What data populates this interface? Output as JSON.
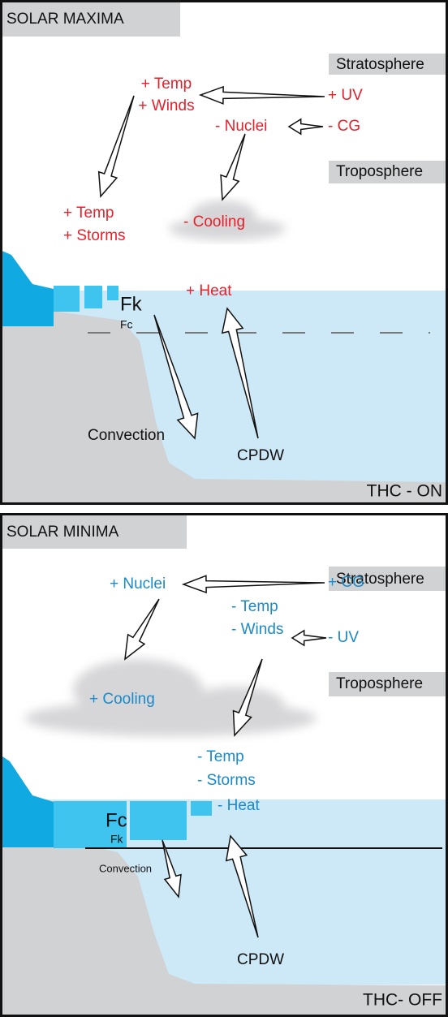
{
  "top": {
    "title": "SOLAR MAXIMA",
    "stratosphere": "Stratosphere",
    "troposphere": "Troposphere",
    "labels": [
      "+ Temp",
      "+ Winds",
      "+ UV",
      "- Nuclei",
      "- CG",
      "+ Temp",
      "+ Storms",
      "- Cooling",
      "+ Heat"
    ],
    "fk": "Fk",
    "fc": "Fc",
    "convection": "Convection",
    "cpdw": "CPDW",
    "thc": "THC - ON"
  },
  "bottom": {
    "title": "SOLAR MINIMA",
    "stratosphere": "Stratosphere",
    "troposphere": "Troposphere",
    "labels": [
      "+ Nuclei",
      "+ CG",
      "- Temp",
      "- Winds",
      "- UV",
      "+ Cooling",
      "- Temp",
      "- Storms",
      "- Heat"
    ],
    "fc": "Fc",
    "fk": "Fk",
    "convection": "Convection",
    "cpdw": "CPDW",
    "thc": "THC- OFF"
  }
}
